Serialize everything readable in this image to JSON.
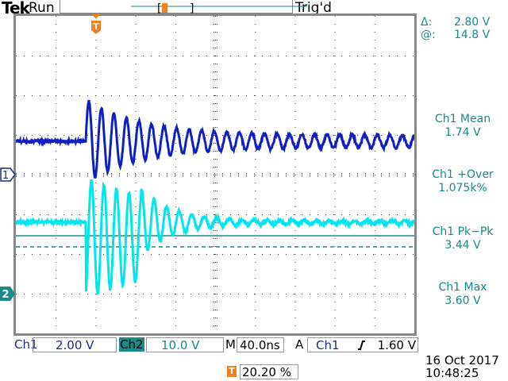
{
  "header": {
    "brand": "Tek",
    "state": "Run",
    "trigger_status": "Trig'd"
  },
  "cursors": {
    "delta_label": "Δ:",
    "delta_value": "2.80 V",
    "at_label": "@:",
    "at_value": "14.8 V"
  },
  "measurements": [
    {
      "label": "Ch1 Mean",
      "value": "1.74 V"
    },
    {
      "label": "Ch1 +Over",
      "value": "1.075k%"
    },
    {
      "label": "Ch1 Pk−Pk",
      "value": "3.44 V"
    },
    {
      "label": "Ch1 Max",
      "value": "3.60 V"
    }
  ],
  "channels": {
    "ch1": {
      "label": "Ch1",
      "scale": "2.00 V",
      "marker": "1",
      "color": "#1020c0"
    },
    "ch2": {
      "label": "Ch2",
      "scale": "10.0 V",
      "marker": "2",
      "color": "#00e5ee"
    }
  },
  "timebase": {
    "label": "M",
    "value": "40.0ns"
  },
  "trigger": {
    "mode": "A",
    "source": "Ch1",
    "slope_icon": "rising-edge-icon",
    "level": "1.60 V",
    "marker": "T",
    "position": "20.20 %"
  },
  "datetime": {
    "date": "16 Oct  2017",
    "time": "10:48:25"
  }
}
